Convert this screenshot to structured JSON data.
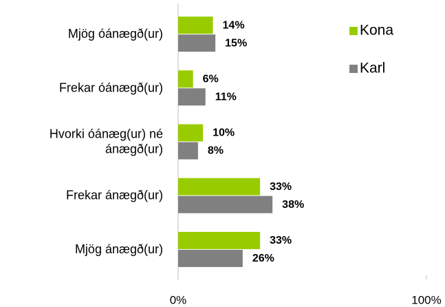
{
  "chart_data": {
    "type": "bar",
    "orientation": "horizontal",
    "categories": [
      "Mjög óánægð(ur)",
      "Frekar óánægð(ur)",
      "Hvorki óánæg(ur) né ánægð(ur)",
      "Frekar ánægð(ur)",
      "Mjög ánægð(ur)"
    ],
    "series": [
      {
        "name": "Kona",
        "color": "#99cc00",
        "values": [
          14,
          6,
          10,
          33,
          33
        ],
        "value_labels": [
          "14%",
          "6%",
          "10%",
          "33%",
          "33%"
        ]
      },
      {
        "name": "Karl",
        "color": "#808080",
        "values": [
          15,
          11,
          8,
          38,
          26
        ],
        "value_labels": [
          "15%",
          "11%",
          "8%",
          "38%",
          "26%"
        ]
      }
    ],
    "xlim": [
      0,
      100
    ],
    "xticks": [
      {
        "value": 0,
        "label": "0%"
      },
      {
        "value": 100,
        "label": "100%"
      }
    ],
    "legend": "top-right"
  }
}
